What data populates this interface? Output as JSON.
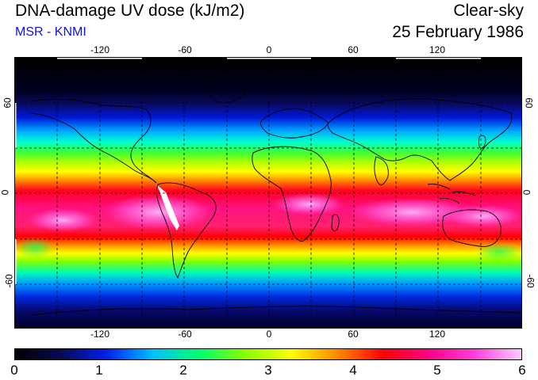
{
  "header": {
    "title": "DNA-damage UV dose (kJ/m2)",
    "subtitle": "MSR - KNMI",
    "condition": "Clear-sky",
    "date": "25 February 1986"
  },
  "map": {
    "lon_ticks": [
      "-120",
      "-60",
      "0",
      "60",
      "120"
    ],
    "lat_ticks_left": [
      "60",
      "0",
      "-60"
    ],
    "lat_ticks_right": [
      "60",
      "0",
      "-60"
    ],
    "projection": "equirectangular",
    "lon_range": [
      -180,
      180
    ],
    "lat_range": [
      -90,
      90
    ],
    "grid_style": "dashed"
  },
  "colorbar": {
    "labels": [
      "0",
      "1",
      "2",
      "3",
      "4",
      "5",
      "6"
    ],
    "colors": [
      "#000000",
      "#0a0a55",
      "#0020ee",
      "#00c0ff",
      "#00ff70",
      "#88ff00",
      "#ffff00",
      "#ff8800",
      "#ff0000",
      "#ff0088",
      "#ff40e0",
      "#ffccff"
    ],
    "unit": "kJ/m2"
  }
}
